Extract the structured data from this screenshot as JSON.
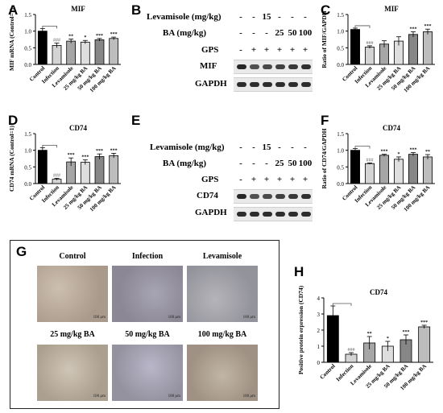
{
  "letters": {
    "A": "A",
    "B": "B",
    "C": "C",
    "D": "D",
    "E": "E",
    "F": "F",
    "G": "G",
    "H": "H"
  },
  "colors": {
    "control": "#000000",
    "infection": "#d4d4d4",
    "levamisole": "#a6a6a6",
    "ba25": "#dedede",
    "ba50": "#878787",
    "ba100": "#bdbdbd"
  },
  "chart_data": [
    {
      "panel": "A",
      "type": "bar",
      "title": "MIF",
      "ylabel": "MIF mRNA (Control=1)",
      "categories": [
        "Control",
        "Infection",
        "Levamisole",
        "25 mg/kg BA",
        "50 mg/kg BA",
        "100 mg/kg BA"
      ],
      "values": [
        1.0,
        0.57,
        0.7,
        0.67,
        0.74,
        0.78
      ],
      "errors": [
        0.08,
        0.07,
        0.06,
        0.05,
        0.04,
        0.04
      ],
      "sig": [
        "",
        "###",
        "**",
        "*",
        "***",
        "***"
      ],
      "ylim": [
        0,
        1.5
      ],
      "yticks": [
        "0.0",
        "0.5",
        "1.0",
        "1.5"
      ]
    },
    {
      "panel": "C",
      "type": "bar",
      "title": "MIF",
      "ylabel": "Ratio of MIF/GAPDH",
      "categories": [
        "Control",
        "Infection",
        "Levamisole",
        "25 mg/kg BA",
        "50 mg/kg BA",
        "100 mg/kg BA"
      ],
      "values": [
        1.05,
        0.52,
        0.61,
        0.7,
        0.9,
        0.98
      ],
      "errors": [
        0.04,
        0.04,
        0.1,
        0.13,
        0.08,
        0.08
      ],
      "sig": [
        "",
        "###",
        "",
        "",
        "***",
        "***"
      ],
      "ylim": [
        0,
        1.5
      ],
      "yticks": [
        "0.0",
        "0.5",
        "1.0",
        "1.5"
      ]
    },
    {
      "panel": "D",
      "type": "bar",
      "title": "CD74",
      "ylabel": "CD74 mRNA (Control=1)",
      "categories": [
        "Control",
        "Infection",
        "Levamisole",
        "25 mg/kg BA",
        "50 mg/kg BA",
        "100 mg/kg BA"
      ],
      "values": [
        1.0,
        0.13,
        0.65,
        0.64,
        0.81,
        0.84
      ],
      "errors": [
        0.08,
        0.03,
        0.12,
        0.07,
        0.08,
        0.07
      ],
      "sig": [
        "",
        "###",
        "***",
        "***",
        "***",
        "***"
      ],
      "ylim": [
        0,
        1.5
      ],
      "yticks": [
        "0.0",
        "0.5",
        "1.0",
        "1.5"
      ]
    },
    {
      "panel": "F",
      "type": "bar",
      "title": "CD74",
      "ylabel": "Ratio of CD74/GAPDH",
      "categories": [
        "Control",
        "Infection",
        "Levamisole",
        "25 mg/kg BA",
        "50 mg/kg BA",
        "100 mg/kg BA"
      ],
      "values": [
        1.0,
        0.6,
        0.85,
        0.73,
        0.88,
        0.8
      ],
      "errors": [
        0.05,
        0.02,
        0.03,
        0.07,
        0.05,
        0.07
      ],
      "sig": [
        "",
        "###",
        "***",
        "*",
        "***",
        "**"
      ],
      "ylim": [
        0,
        1.5
      ],
      "yticks": [
        "0.0",
        "0.5",
        "1.0",
        "1.5"
      ]
    },
    {
      "panel": "H",
      "type": "bar",
      "title": "CD74",
      "ylabel": "Positive protein erpression (CD74)",
      "categories": [
        "Control",
        "Infection",
        "Levamisole",
        "25 mg/kg BA",
        "50 mg/kg BA",
        "100 mg/kg BA"
      ],
      "values": [
        2.9,
        0.5,
        1.2,
        1.0,
        1.4,
        2.2
      ],
      "errors": [
        0.6,
        0.1,
        0.4,
        0.3,
        0.3,
        0.1
      ],
      "sig": [
        "",
        "###",
        "**",
        "*",
        "***",
        "***"
      ],
      "ylim": [
        0,
        4
      ],
      "yticks": [
        "0",
        "1",
        "2",
        "3",
        "4"
      ]
    }
  ],
  "blot_B": {
    "row_levamisole": {
      "label": "Levamisole (mg/kg)",
      "cells": [
        "-",
        "-",
        "15",
        "-",
        "-",
        "-"
      ]
    },
    "row_ba": {
      "label": "BA  (mg/kg)",
      "cells": [
        "-",
        "-",
        "-",
        "25",
        "50",
        "100"
      ]
    },
    "row_gps": {
      "label": "GPS",
      "cells": [
        "-",
        "+",
        "+",
        "+",
        "+",
        "+"
      ]
    },
    "band1": "MIF",
    "band2": "GAPDH"
  },
  "blot_E": {
    "row_levamisole": {
      "label": "Levamisole (mg/kg)",
      "cells": [
        "-",
        "-",
        "15",
        "-",
        "-",
        "-"
      ]
    },
    "row_ba": {
      "label": "BA  (mg/kg)",
      "cells": [
        "-",
        "-",
        "-",
        "25",
        "50",
        "100"
      ]
    },
    "row_gps": {
      "label": "GPS",
      "cells": [
        "-",
        "+",
        "+",
        "+",
        "+",
        "+"
      ]
    },
    "band1": "CD74",
    "band2": "GAPDH"
  },
  "ihc_G": {
    "labels": [
      "Control",
      "Infection",
      "Levamisole",
      "25 mg/kg BA",
      "50 mg/kg BA",
      "100 mg/kg BA"
    ],
    "scale_bar": "100 μm"
  }
}
